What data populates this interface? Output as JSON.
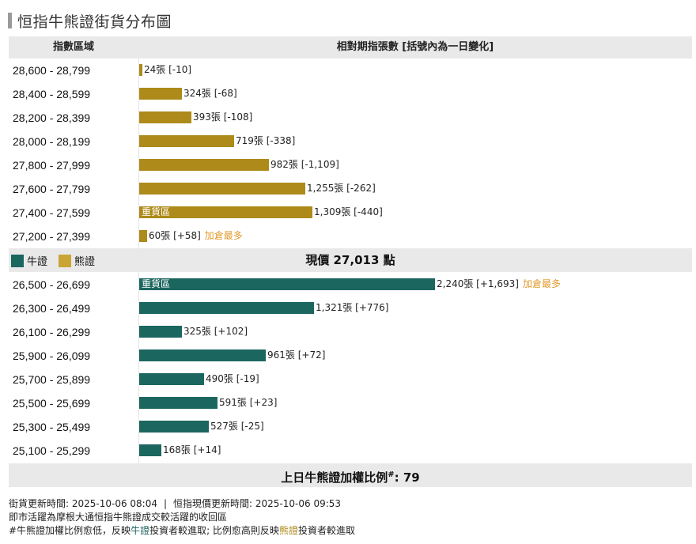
{
  "title": "恒指牛熊證街貨分布圖",
  "table_header": {
    "range_col": "指數區域",
    "count_col": "相對期指張數 [括號內為一日變化]"
  },
  "legend": {
    "bull": "牛證",
    "bear": "熊證"
  },
  "current_price_text": "現價 27,013 點",
  "heavy_label": "重貨區",
  "top_add_note": "加倉最多",
  "ratio": {
    "label": "上日牛熊證加權比例",
    "marker": "#",
    "value": ": 79"
  },
  "footer": {
    "update_time": "街貨更新時間: 2025-10-06 08:04",
    "separator": "|",
    "price_time": "恒指現價更新時間: 2025-10-06 09:53",
    "note1": "即市活躍為摩根大通恒指牛熊證成交較活躍的收回區",
    "note2_prefix": "#牛熊證加權比例愈低，反映",
    "note2_bull": "牛證",
    "note2_mid": "投資者較進取; 比例愈高則反映",
    "note2_bear": "熊證",
    "note2_suffix": "投資者較進取"
  },
  "colors": {
    "bull": "#1c6660",
    "bear": "#ad8a19",
    "note": "#e39a2c"
  },
  "chart_data": {
    "type": "bar",
    "orientation": "horizontal",
    "unit": "張",
    "bear": [
      {
        "range": "28,600 - 28,799",
        "value": 24,
        "change": "-10",
        "label": "24張 [-10]"
      },
      {
        "range": "28,400 - 28,599",
        "value": 324,
        "change": "-68",
        "label": "324張 [-68]"
      },
      {
        "range": "28,200 - 28,399",
        "value": 393,
        "change": "-108",
        "label": "393張 [-108]"
      },
      {
        "range": "28,000 - 28,199",
        "value": 719,
        "change": "-338",
        "label": "719張 [-338]"
      },
      {
        "range": "27,800 - 27,999",
        "value": 982,
        "change": "-1,109",
        "label": "982張 [-1,109]"
      },
      {
        "range": "27,600 - 27,799",
        "value": 1255,
        "change": "-262",
        "label": "1,255張 [-262]"
      },
      {
        "range": "27,400 - 27,599",
        "value": 1309,
        "change": "-440",
        "label": "1,309張 [-440]",
        "heavy": true
      },
      {
        "range": "27,200 - 27,399",
        "value": 60,
        "change": "+58",
        "label": "60張 [+58]",
        "top_add": true
      }
    ],
    "bull": [
      {
        "range": "26,500 - 26,699",
        "value": 2240,
        "change": "+1,693",
        "label": "2,240張 [+1,693]",
        "heavy": true,
        "top_add": true
      },
      {
        "range": "26,300 - 26,499",
        "value": 1321,
        "change": "+776",
        "label": "1,321張 [+776]"
      },
      {
        "range": "26,100 - 26,299",
        "value": 325,
        "change": "+102",
        "label": "325張 [+102]"
      },
      {
        "range": "25,900 - 26,099",
        "value": 961,
        "change": "+72",
        "label": "961張 [+72]"
      },
      {
        "range": "25,700 - 25,899",
        "value": 490,
        "change": "-19",
        "label": "490張 [-19]"
      },
      {
        "range": "25,500 - 25,699",
        "value": 591,
        "change": "+23",
        "label": "591張 [+23]"
      },
      {
        "range": "25,300 - 25,499",
        "value": 527,
        "change": "-25",
        "label": "527張 [-25]"
      },
      {
        "range": "25,100 - 25,299",
        "value": 168,
        "change": "+14",
        "label": "168張 [+14]"
      }
    ]
  }
}
